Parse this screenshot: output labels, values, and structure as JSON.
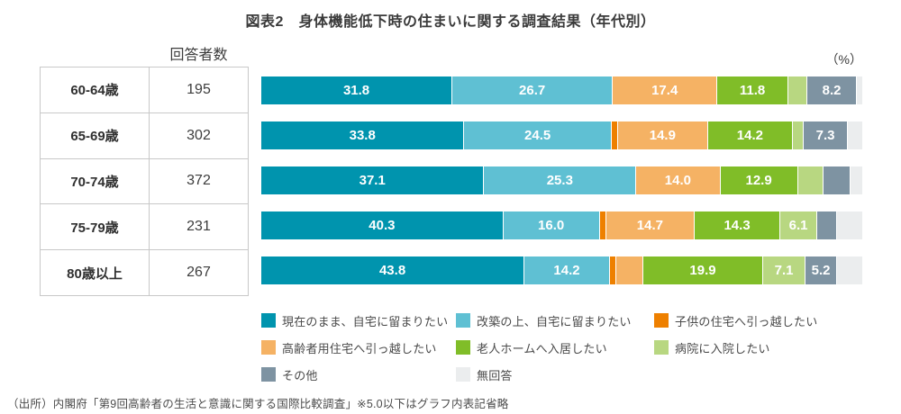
{
  "title": "図表2　身体機能低下時の住まいに関する調査結果（年代別）",
  "unit_label": "（%）",
  "table": {
    "header": "回答者数",
    "rows": [
      {
        "age": "60-64歳",
        "count": "195"
      },
      {
        "age": "65-69歳",
        "count": "302"
      },
      {
        "age": "70-74歳",
        "count": "372"
      },
      {
        "age": "75-79歳",
        "count": "231"
      },
      {
        "age": "80歳以上",
        "count": "267"
      }
    ]
  },
  "chart_data": {
    "type": "bar",
    "stacked": true,
    "orientation": "horizontal",
    "unit": "%",
    "xlim": [
      0,
      100
    ],
    "label_rule": "values of 5.0 or less are not labeled inside bars",
    "categories": [
      "60-64歳",
      "65-69歳",
      "70-74歳",
      "75-79歳",
      "80歳以上"
    ],
    "respondents": [
      195,
      302,
      372,
      231,
      267
    ],
    "series": [
      {
        "name": "現在のまま、自宅に留まりたい",
        "color": "#0094ae",
        "values": [
          31.8,
          33.8,
          37.1,
          40.3,
          43.8
        ]
      },
      {
        "name": "改築の上、自宅に留まりたい",
        "color": "#5fc0d3",
        "values": [
          26.7,
          24.5,
          25.3,
          16.0,
          14.2
        ]
      },
      {
        "name": "子供の住宅へ引っ越したい",
        "color": "#ee8000",
        "values": [
          0.0,
          1.1,
          0.0,
          1.1,
          1.0
        ]
      },
      {
        "name": "高齢者用住宅へ引っ越したい",
        "color": "#f5b264",
        "values": [
          17.4,
          14.9,
          14.0,
          14.7,
          4.6
        ]
      },
      {
        "name": "老人ホームへ入居したい",
        "color": "#80bd28",
        "values": [
          11.8,
          14.2,
          12.9,
          14.3,
          19.9
        ]
      },
      {
        "name": "病院に入院したい",
        "color": "#b8d781",
        "values": [
          3.2,
          1.8,
          4.2,
          6.1,
          7.1
        ]
      },
      {
        "name": "その他",
        "color": "#7e93a2",
        "values": [
          8.2,
          7.3,
          4.5,
          3.3,
          5.2
        ]
      },
      {
        "name": "無回答",
        "color": "#ebedee",
        "values": [
          0.9,
          2.4,
          2.0,
          4.2,
          4.2
        ]
      }
    ]
  },
  "source": "（出所）内閣府「第9回高齢者の生活と意識に関する国際比較調査」※5.0以下はグラフ内表記省略"
}
